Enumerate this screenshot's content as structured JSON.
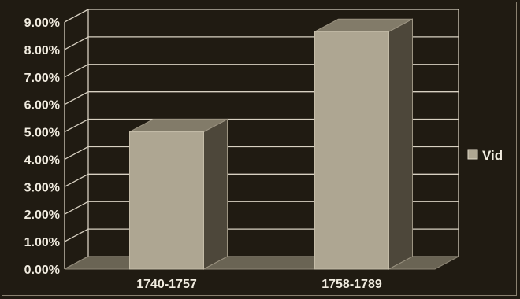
{
  "chart_data": {
    "type": "bar",
    "categories": [
      "1740-1757",
      "1758-1789"
    ],
    "series": [
      {
        "name": "Vid",
        "values": [
          5.0,
          8.65
        ]
      }
    ],
    "ylim": [
      0,
      9
    ],
    "y_ticks": [
      "0.00%",
      "1.00%",
      "2.00%",
      "3.00%",
      "4.00%",
      "5.00%",
      "6.00%",
      "7.00%",
      "8.00%",
      "9.00%"
    ],
    "grid": true,
    "legend": "right",
    "colors": {
      "background": "#201b12",
      "bar_front": "#aea692",
      "bar_top": "#827b69",
      "bar_side": "#4d473a",
      "floor": "#6a6454",
      "grid": "#d8d1c2"
    }
  }
}
